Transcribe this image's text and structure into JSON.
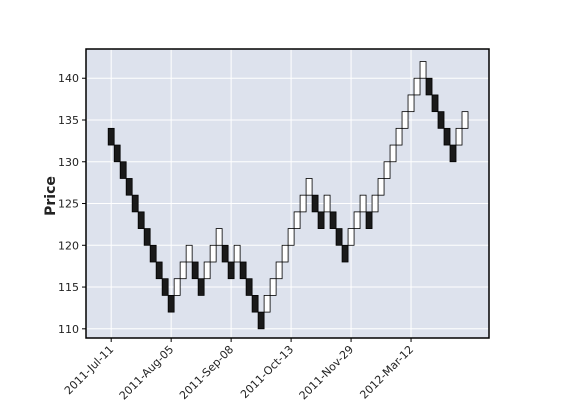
{
  "chart_data": {
    "type": "renko",
    "ylabel": "Price",
    "open": [
      134,
      132,
      130,
      128,
      126,
      124,
      122,
      120,
      118,
      116,
      114,
      114,
      116,
      118,
      118,
      116,
      116,
      118,
      120,
      120,
      118,
      118,
      118,
      116,
      114,
      112,
      112,
      114,
      116,
      118,
      120,
      122,
      124,
      126,
      126,
      124,
      124,
      124,
      122,
      120,
      120,
      122,
      124,
      124,
      124,
      126,
      128,
      130,
      132,
      134,
      136,
      138,
      140,
      140,
      138,
      136,
      134,
      132,
      132,
      134
    ],
    "close": [
      132,
      130,
      128,
      126,
      124,
      122,
      120,
      118,
      116,
      114,
      112,
      116,
      118,
      120,
      116,
      114,
      118,
      120,
      122,
      118,
      116,
      120,
      116,
      114,
      112,
      110,
      114,
      116,
      118,
      120,
      122,
      124,
      126,
      128,
      124,
      122,
      126,
      122,
      120,
      118,
      122,
      124,
      126,
      122,
      126,
      128,
      130,
      132,
      134,
      136,
      138,
      140,
      142,
      138,
      136,
      134,
      132,
      130,
      134,
      136
    ],
    "xlim": [
      -4.2,
      63
    ],
    "ylim": [
      108.9,
      143.5
    ],
    "xticks": [
      {
        "value": 0,
        "label": "2011-Jul-11"
      },
      {
        "value": 10,
        "label": "2011-Aug-05"
      },
      {
        "value": 20,
        "label": "2011-Sep-08"
      },
      {
        "value": 30,
        "label": "2011-Oct-13"
      },
      {
        "value": 40,
        "label": "2011-Nov-29"
      },
      {
        "value": 50,
        "label": "2012-Mar-12"
      }
    ],
    "yticks": [
      110,
      115,
      120,
      125,
      130,
      135,
      140
    ],
    "grid": true,
    "up_color": "#ffffff",
    "down_color": "#1a1a1a",
    "edge_color": "#000000",
    "background": "#dde2ed"
  }
}
